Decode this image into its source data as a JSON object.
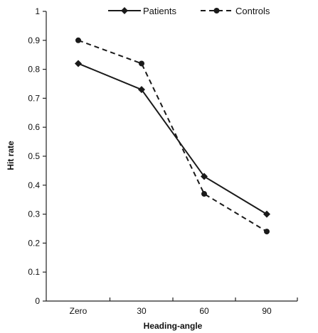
{
  "chart_data": {
    "type": "line",
    "title": "",
    "xlabel": "Heading-angle",
    "ylabel": "Hit rate",
    "categories": [
      "Zero",
      "30",
      "60",
      "90"
    ],
    "ylim": [
      0,
      1
    ],
    "yticks": [
      "0",
      "0.1",
      "0.2",
      "0.3",
      "0.4",
      "0.5",
      "0.6",
      "0.7",
      "0.8",
      "0.9",
      "1"
    ],
    "grid": false,
    "legend_position": "top",
    "series": [
      {
        "name": "Patients",
        "values": [
          0.82,
          0.73,
          0.43,
          0.3
        ],
        "marker": "diamond",
        "line_style": "solid",
        "color": "#1a1a1a"
      },
      {
        "name": "Controls",
        "values": [
          0.9,
          0.82,
          0.37,
          0.24
        ],
        "marker": "circle",
        "line_style": "dashed",
        "color": "#1a1a1a"
      }
    ]
  }
}
